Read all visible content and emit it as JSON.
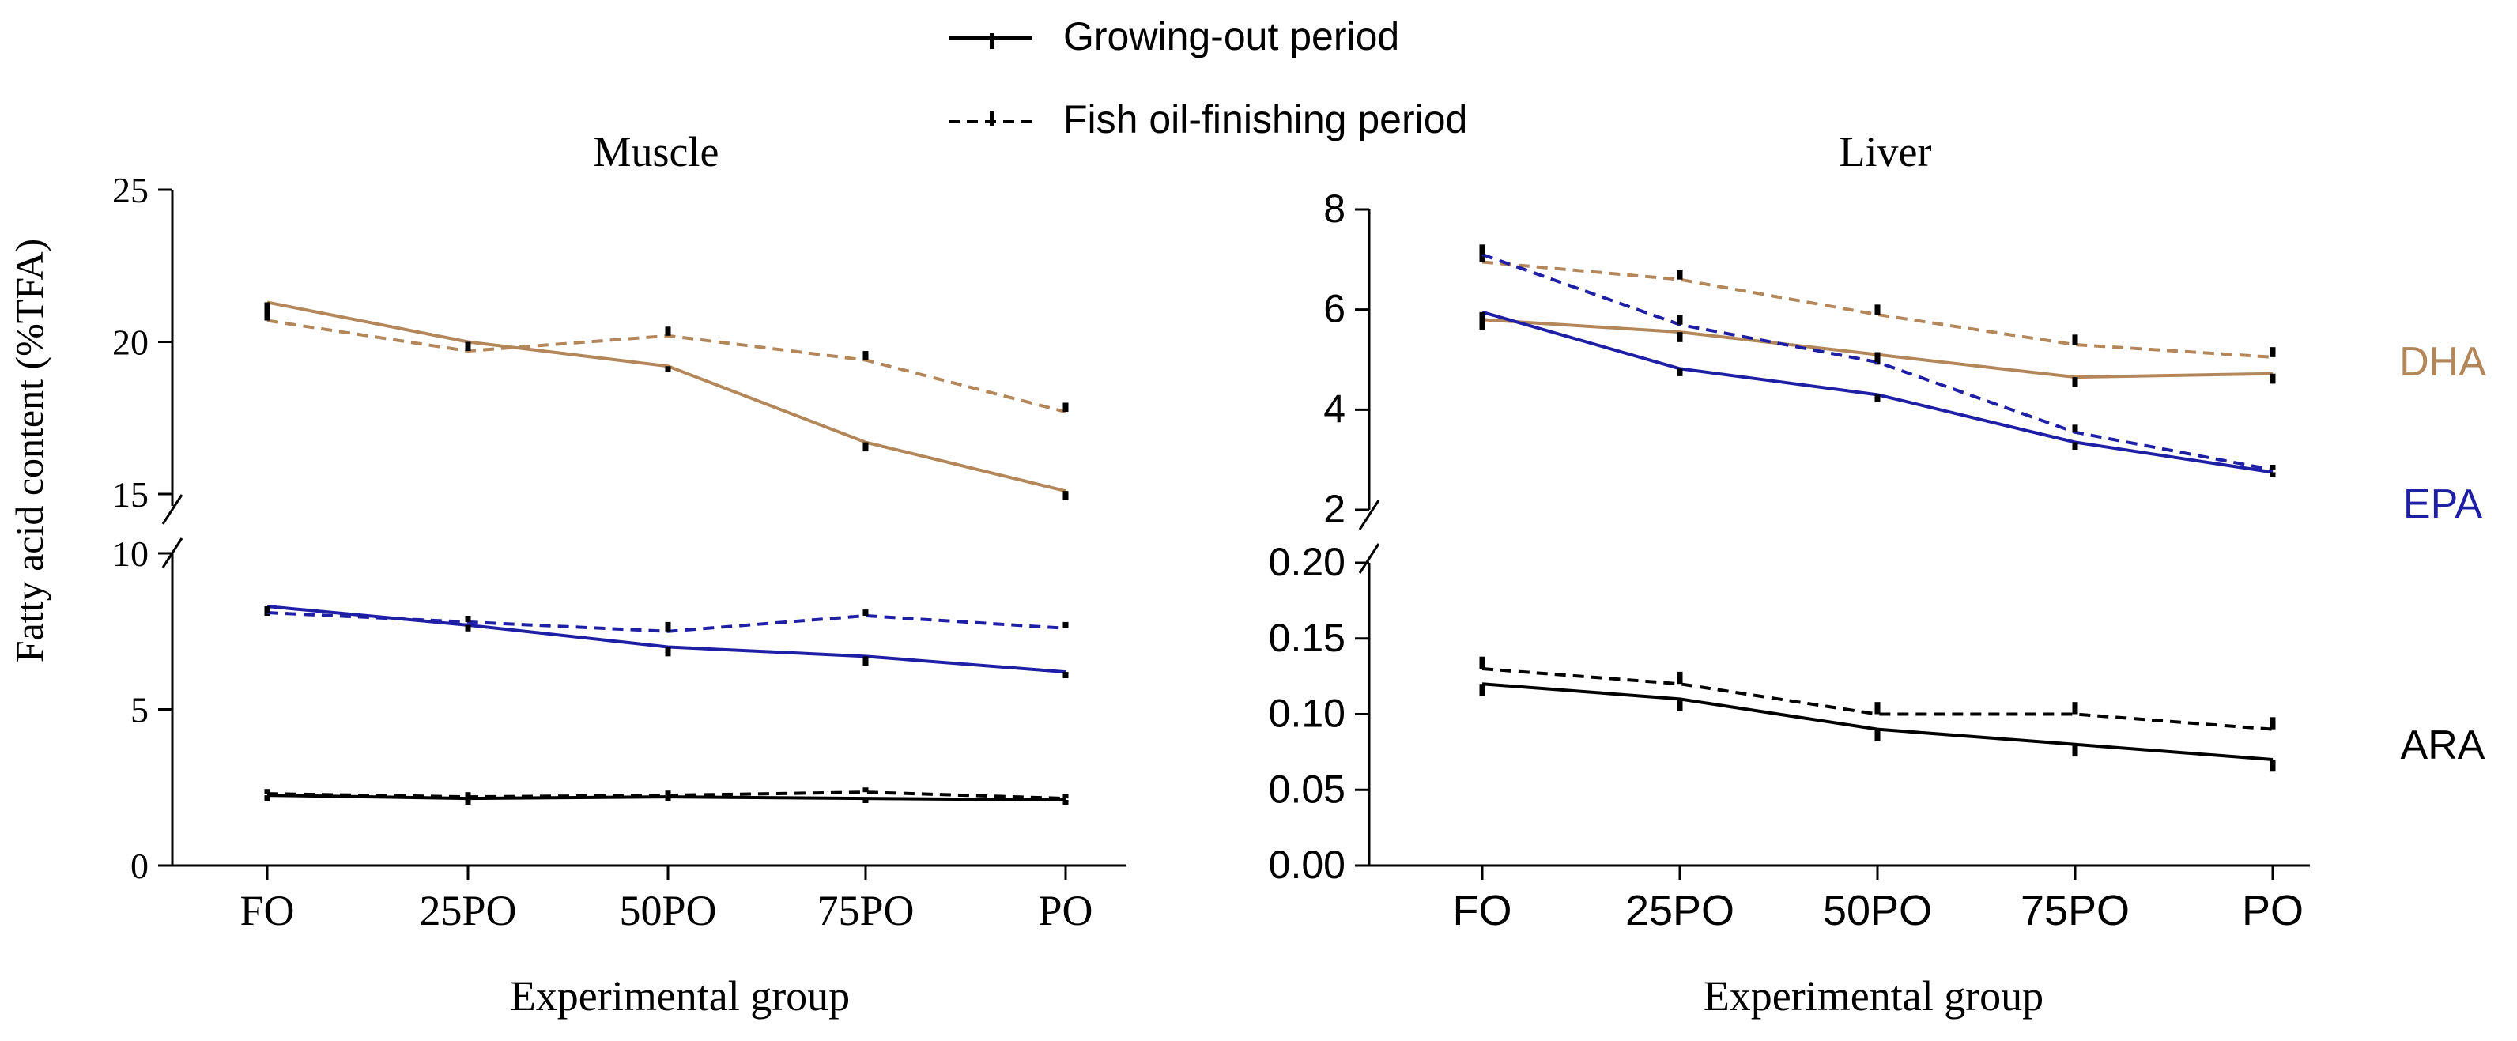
{
  "legend": {
    "growing_label": "Growing-out period",
    "finishing_label": "Fish oil-finishing period"
  },
  "y_axis_label": "Fatty acid content (%TFA)",
  "series_labels": {
    "dha": "DHA",
    "epa": "EPA",
    "ara": "ARA"
  },
  "colors": {
    "dha": "#b3875a",
    "epa": "#1f1fa5",
    "ara": "#000000"
  },
  "chart_data": [
    {
      "type": "line",
      "title": "Muscle",
      "xlabel": "Experimental group",
      "ylabel": "Fatty acid content (%TFA)",
      "categories": [
        "FO",
        "25PO",
        "50PO",
        "75PO",
        "PO"
      ],
      "axis_break": true,
      "upper_segment": {
        "ylim": [
          15,
          25
        ],
        "ticks": [
          "15",
          "20",
          "25"
        ]
      },
      "lower_segment": {
        "ylim": [
          0,
          10
        ],
        "ticks": [
          "0",
          "5",
          "10"
        ]
      },
      "series": [
        {
          "name": "DHA",
          "period": "Growing-out period",
          "segment": "upper",
          "values": [
            21.3,
            20.0,
            19.2,
            16.7,
            15.1
          ],
          "errors": [
            0.3,
            0.3,
            0.2,
            0.3,
            0.3
          ]
        },
        {
          "name": "DHA",
          "period": "Fish oil-finishing period",
          "segment": "upper",
          "values": [
            20.7,
            19.7,
            20.2,
            19.4,
            17.7
          ],
          "errors": [
            0.3,
            0.3,
            0.3,
            0.3,
            0.3
          ]
        },
        {
          "name": "EPA",
          "period": "Growing-out period",
          "segment": "lower",
          "values": [
            8.3,
            7.7,
            7.0,
            6.7,
            6.2
          ],
          "errors": [
            0.3,
            0.2,
            0.3,
            0.3,
            0.2
          ]
        },
        {
          "name": "EPA",
          "period": "Fish oil-finishing period",
          "segment": "lower",
          "values": [
            8.1,
            7.8,
            7.5,
            8.0,
            7.6
          ],
          "errors": [
            0.2,
            0.2,
            0.3,
            0.2,
            0.2
          ]
        },
        {
          "name": "ARA",
          "period": "Growing-out period",
          "segment": "lower",
          "values": [
            2.25,
            2.15,
            2.2,
            2.15,
            2.1
          ],
          "errors": [
            0.2,
            0.2,
            0.15,
            0.15,
            0.15
          ]
        },
        {
          "name": "ARA",
          "period": "Fish oil-finishing period",
          "segment": "lower",
          "values": [
            2.3,
            2.2,
            2.25,
            2.35,
            2.15
          ],
          "errors": [
            0.15,
            0.15,
            0.15,
            0.15,
            0.15
          ]
        }
      ]
    },
    {
      "type": "line",
      "title": "Liver",
      "xlabel": "Experimental group",
      "ylabel": "Fatty acid content (%TFA)",
      "categories": [
        "FO",
        "25PO",
        "50PO",
        "75PO",
        "PO"
      ],
      "axis_break": true,
      "upper_segment": {
        "ylim": [
          2,
          8
        ],
        "ticks": [
          "2",
          "4",
          "6",
          "8"
        ]
      },
      "lower_segment": {
        "ylim": [
          0,
          0.2
        ],
        "ticks": [
          "0.00",
          "0.05",
          "0.10",
          "0.15",
          "0.20"
        ]
      },
      "series": [
        {
          "name": "DHA",
          "period": "Growing-out period",
          "segment": "upper",
          "values": [
            5.8,
            5.55,
            5.1,
            4.65,
            4.72
          ],
          "errors": [
            0.2,
            0.2,
            0.2,
            0.2,
            0.2
          ]
        },
        {
          "name": "DHA",
          "period": "Fish oil-finishing period",
          "segment": "upper",
          "values": [
            6.95,
            6.6,
            5.9,
            5.3,
            5.05
          ],
          "errors": [
            0.2,
            0.2,
            0.2,
            0.2,
            0.2
          ]
        },
        {
          "name": "EPA",
          "period": "Growing-out period",
          "segment": "upper",
          "values": [
            5.95,
            4.82,
            4.3,
            3.35,
            2.75
          ],
          "errors": [
            0.2,
            0.15,
            0.15,
            0.15,
            0.1
          ]
        },
        {
          "name": "EPA",
          "period": "Fish oil-finishing period",
          "segment": "upper",
          "values": [
            7.1,
            5.7,
            4.95,
            3.55,
            2.8
          ],
          "errors": [
            0.2,
            0.2,
            0.2,
            0.15,
            0.1
          ]
        },
        {
          "name": "ARA",
          "period": "Growing-out period",
          "segment": "lower",
          "values": [
            0.12,
            0.11,
            0.09,
            0.08,
            0.07
          ],
          "errors": [
            0.008,
            0.008,
            0.008,
            0.008,
            0.008
          ]
        },
        {
          "name": "ARA",
          "period": "Fish oil-finishing period",
          "segment": "lower",
          "values": [
            0.13,
            0.12,
            0.1,
            0.1,
            0.09
          ],
          "errors": [
            0.008,
            0.008,
            0.008,
            0.008,
            0.008
          ]
        }
      ]
    }
  ]
}
